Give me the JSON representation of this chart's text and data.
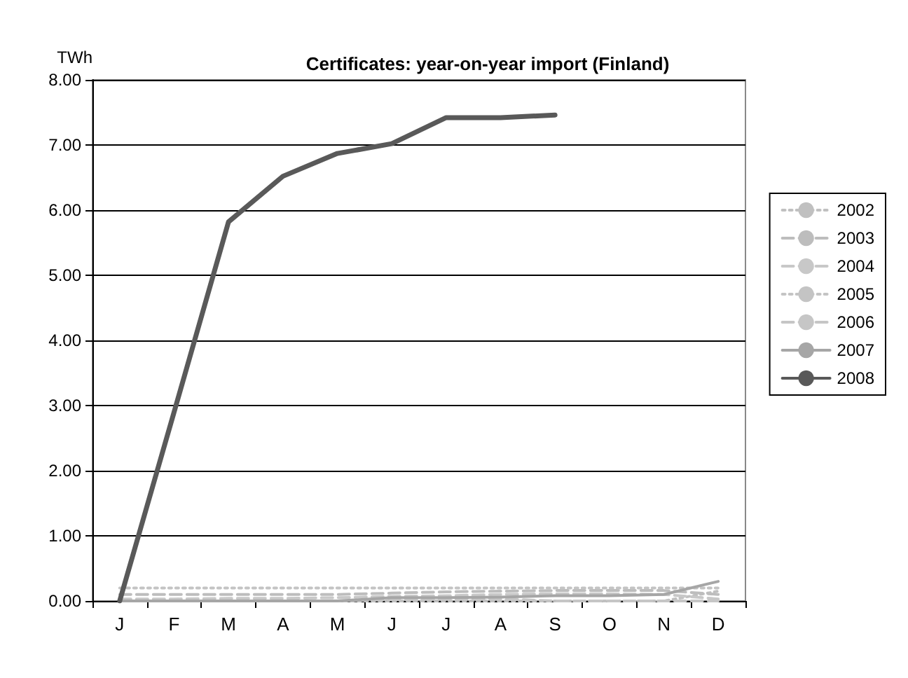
{
  "chart_data": {
    "type": "line",
    "title": "Certificates: year-on-year import (Finland)",
    "ylabel": "TWh",
    "categories": [
      "J",
      "F",
      "M",
      "A",
      "M",
      "J",
      "J",
      "A",
      "S",
      "O",
      "N",
      "D"
    ],
    "ylim": [
      0,
      8
    ],
    "yticks": [
      {
        "value": 0,
        "label": "0.00"
      },
      {
        "value": 1,
        "label": "1.00"
      },
      {
        "value": 2,
        "label": "2.00"
      },
      {
        "value": 3,
        "label": "3.00"
      },
      {
        "value": 4,
        "label": "4.00"
      },
      {
        "value": 5,
        "label": "5.00"
      },
      {
        "value": 6,
        "label": "6.00"
      },
      {
        "value": 7,
        "label": "7.00"
      },
      {
        "value": 8,
        "label": "8.00"
      }
    ],
    "grid": "y",
    "legend": "right",
    "marker": "none",
    "series": [
      {
        "name": "2002",
        "color": "#c0c0c0",
        "line_style": "dotted",
        "values": [
          0,
          0,
          0,
          0,
          0,
          0,
          0,
          0,
          0,
          0,
          0,
          0.15
        ]
      },
      {
        "name": "2003",
        "color": "#bdbdbd",
        "line_style": "dashed",
        "values": [
          0.1,
          0.1,
          0.1,
          0.1,
          0.1,
          0.12,
          0.14,
          0.15,
          0.16,
          0.16,
          0.16,
          0.1
        ]
      },
      {
        "name": "2004",
        "color": "#c8c8c8",
        "line_style": "dashed",
        "values": [
          0.03,
          0.03,
          0.04,
          0.04,
          0.05,
          0.07,
          0.08,
          0.1,
          0.11,
          0.11,
          0.1,
          0.03
        ]
      },
      {
        "name": "2005",
        "color": "#c4c4c4",
        "line_style": "dotted",
        "values": [
          0.2,
          0.2,
          0.2,
          0.2,
          0.2,
          0.2,
          0.2,
          0.2,
          0.2,
          0.2,
          0.2,
          0.2
        ]
      },
      {
        "name": "2006",
        "color": "#c6c6c6",
        "line_style": "dashed",
        "values": [
          0,
          0,
          0,
          0,
          0,
          0.02,
          0.03,
          0.03,
          0,
          0,
          0,
          0
        ]
      },
      {
        "name": "2007",
        "color": "#a6a6a6",
        "line_style": "solid",
        "values": [
          0,
          0,
          0,
          0,
          0,
          0.05,
          0.05,
          0.06,
          0.08,
          0.08,
          0.1,
          0.3
        ]
      },
      {
        "name": "2008",
        "color": "#595959",
        "line_style": "solid",
        "values": [
          0,
          2.9,
          5.82,
          6.52,
          6.87,
          7.02,
          7.42,
          7.42,
          7.46,
          null,
          null,
          null
        ]
      }
    ]
  }
}
